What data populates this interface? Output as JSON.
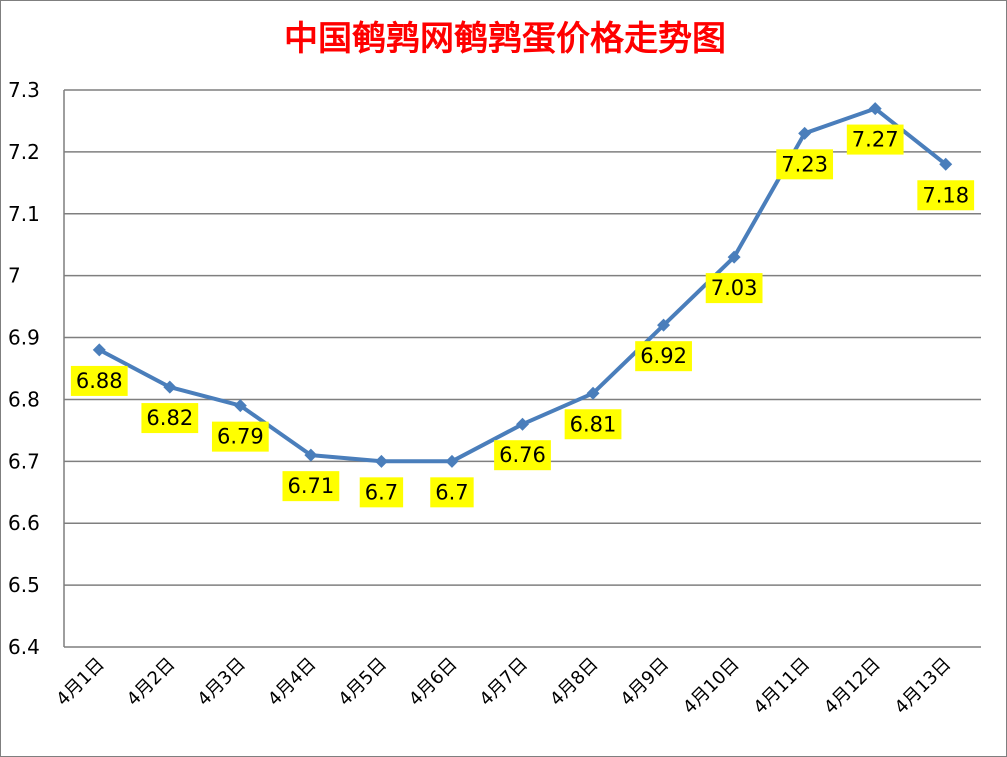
{
  "chart_data": {
    "type": "line",
    "title": "中国鹌鹑网鹌鹑蛋价格走势图",
    "xlabel": "",
    "ylabel": "",
    "categories": [
      "4月1日",
      "4月2日",
      "4月3日",
      "4月4日",
      "4月5日",
      "4月6日",
      "4月7日",
      "4月8日",
      "4月9日",
      "4月10日",
      "4月11日",
      "4月12日",
      "4月13日"
    ],
    "series": [
      {
        "values": [
          6.88,
          6.82,
          6.79,
          6.71,
          6.7,
          6.7,
          6.76,
          6.81,
          6.92,
          7.03,
          7.23,
          7.27,
          7.18
        ],
        "labels": [
          "6.88",
          "6.82",
          "6.79",
          "6.71",
          "6.7",
          "6.7",
          "6.76",
          "6.81",
          "6.92",
          "7.03",
          "7.23",
          "7.27",
          "7.18"
        ]
      }
    ],
    "ylim": [
      6.4,
      7.3
    ],
    "yticks": [
      "6.4",
      "6.5",
      "6.6",
      "6.7",
      "6.8",
      "6.9",
      "7",
      "7.1",
      "7.2",
      "7.3"
    ],
    "grid": true,
    "legend": "none",
    "colors": {
      "line": "#4a7ebb",
      "title": "#ff0000",
      "label_bg": "#ffff00",
      "grid": "#7f7f7f"
    }
  }
}
